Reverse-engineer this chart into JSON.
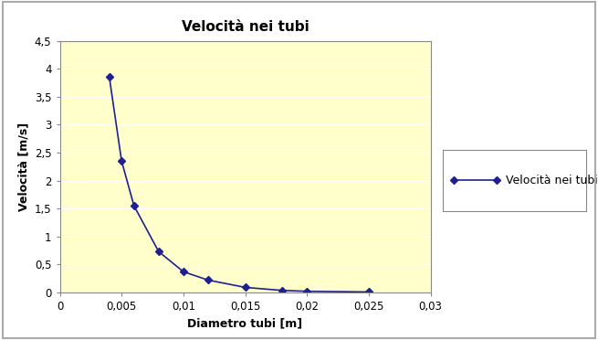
{
  "title": "Velocità nei tubi",
  "xlabel": "Diametro tubi [m]",
  "ylabel": "Velocità [m/s]",
  "legend_label": "Velocità nei tubi",
  "x": [
    0.004,
    0.005,
    0.006,
    0.008,
    0.01,
    0.012,
    0.015,
    0.018,
    0.02,
    0.025
  ],
  "y": [
    3.86,
    2.35,
    1.55,
    0.73,
    0.37,
    0.22,
    0.09,
    0.035,
    0.02,
    0.008
  ],
  "line_color": "#1F1F8F",
  "marker": "D",
  "marker_size": 4,
  "marker_color": "#1F1F8F",
  "xlim": [
    0,
    0.03
  ],
  "ylim": [
    0,
    4.5
  ],
  "xticks": [
    0,
    0.005,
    0.01,
    0.015,
    0.02,
    0.025,
    0.03
  ],
  "yticks": [
    0,
    0.5,
    1.0,
    1.5,
    2.0,
    2.5,
    3.0,
    3.5,
    4.0,
    4.5
  ],
  "ytick_labels": [
    "0",
    "0,5",
    "1",
    "1,5",
    "2",
    "2,5",
    "3",
    "3,5",
    "4",
    "4,5"
  ],
  "xtick_labels": [
    "0",
    "0,005",
    "0,01",
    "0,015",
    "0,02",
    "0,025",
    "0,03"
  ],
  "plot_bg_color": "#FFFFCC",
  "fig_bg_color": "#FFFFFF",
  "grid_color": "#FFFFFF",
  "border_color": "#AAAAAA",
  "title_fontsize": 11,
  "axis_label_fontsize": 9,
  "tick_fontsize": 8.5,
  "legend_fontsize": 9
}
